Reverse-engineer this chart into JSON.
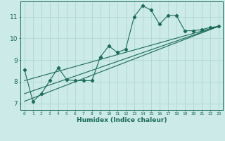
{
  "xlabel": "Humidex (Indice chaleur)",
  "bg_color": "#cceae7",
  "line_color": "#1a6b5a",
  "xlim": [
    -0.5,
    23.5
  ],
  "ylim": [
    6.7,
    11.7
  ],
  "xticks": [
    0,
    1,
    2,
    3,
    4,
    5,
    6,
    7,
    8,
    9,
    10,
    11,
    12,
    13,
    14,
    15,
    16,
    17,
    18,
    19,
    20,
    21,
    22,
    23
  ],
  "yticks": [
    7,
    8,
    9,
    10,
    11
  ],
  "series1": [
    [
      0,
      8.55
    ],
    [
      1,
      7.1
    ],
    [
      2,
      7.45
    ],
    [
      3,
      8.05
    ],
    [
      4,
      8.65
    ],
    [
      5,
      8.1
    ],
    [
      6,
      8.05
    ],
    [
      7,
      8.05
    ],
    [
      8,
      8.05
    ],
    [
      9,
      9.15
    ],
    [
      10,
      9.65
    ],
    [
      11,
      9.35
    ],
    [
      12,
      9.5
    ],
    [
      13,
      11.0
    ],
    [
      14,
      11.5
    ],
    [
      15,
      11.3
    ],
    [
      16,
      10.65
    ],
    [
      17,
      11.05
    ],
    [
      18,
      11.05
    ],
    [
      19,
      10.35
    ],
    [
      20,
      10.35
    ],
    [
      21,
      10.4
    ],
    [
      22,
      10.5
    ],
    [
      23,
      10.55
    ]
  ],
  "linear_lines": [
    [
      [
        0,
        7.1
      ],
      [
        23,
        10.55
      ]
    ],
    [
      [
        0,
        7.45
      ],
      [
        23,
        10.55
      ]
    ],
    [
      [
        0,
        8.05
      ],
      [
        23,
        10.55
      ]
    ]
  ],
  "grid_color": "#aad4d0",
  "spine_color": "#1a6b5a"
}
